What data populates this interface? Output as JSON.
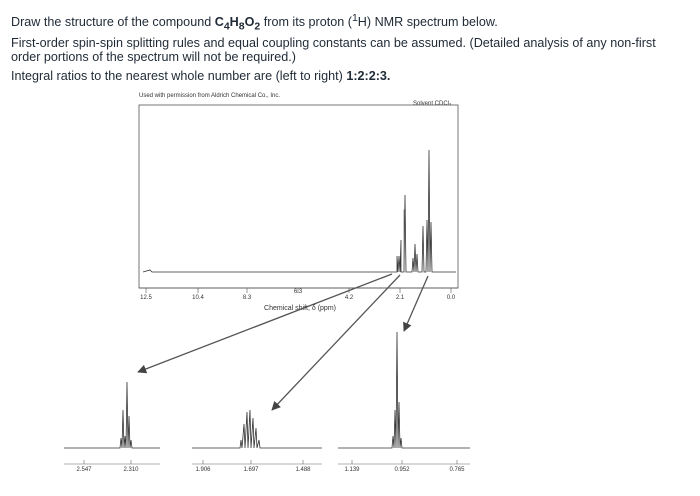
{
  "question": {
    "line1_prefix": "Draw the structure of the compound ",
    "formula": {
      "c": "C",
      "c_sub": "4",
      "h": "H",
      "h_sub": "8",
      "o": "O",
      "o_sub": "2"
    },
    "line1_mid": " from its proton (",
    "nucleus_sup": "1",
    "nucleus": "H) NMR spectrum below.",
    "line2": "First-order spin-spin splitting rules and equal coupling constants can be assumed. (Detailed analysis of any non-first",
    "line3": "order portions of the spectrum will not be required.)",
    "line4_prefix": "Integral ratios to the nearest whole number are (left to right) ",
    "ratios": "1:2:2:3."
  },
  "spectrum": {
    "permission": "Used with permission from Aldrich Chemical Co., Inc.",
    "solvent": "Solvent CDCl₃",
    "x_ticks": [
      "12.5",
      "10.4",
      "8.3",
      "6.3",
      "4.2",
      "2.1",
      "0.0"
    ],
    "xlabel": "Chemical shift, δ (ppm)"
  },
  "expansions": {
    "ticks": [
      "2.547",
      "2.310",
      "1.906",
      "1.697",
      "1.488",
      "1.139",
      "0.952",
      "0.765"
    ]
  }
}
